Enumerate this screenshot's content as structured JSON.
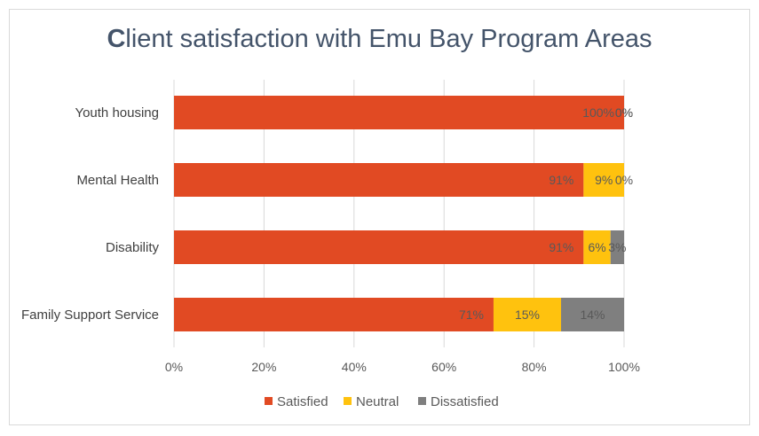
{
  "chart_data": {
    "type": "bar",
    "orientation": "horizontal",
    "stacked": "percent",
    "title_first_letter": "C",
    "title_rest": "lient satisfaction with Emu Bay Program Areas",
    "categories": [
      "Youth housing",
      "Mental Health",
      "Disability",
      "Family Support Service"
    ],
    "series": [
      {
        "name": "Satisfied",
        "color": "#e14a23",
        "values": [
          100,
          91,
          91,
          71
        ],
        "labels": [
          "100%",
          "91%",
          "91%",
          "71%"
        ]
      },
      {
        "name": "Neutral",
        "color": "#ffc20e",
        "values": [
          0,
          9,
          6,
          15
        ],
        "labels": [
          "0%",
          "9%",
          "6%",
          "15%"
        ]
      },
      {
        "name": "Dissatisfied",
        "color": "#7f7f7f",
        "values": [
          0,
          0,
          3,
          14
        ],
        "labels": [
          "0%",
          "0%",
          "3%",
          "14%"
        ]
      }
    ],
    "xticks": [
      "0%",
      "20%",
      "40%",
      "60%",
      "80%",
      "100%"
    ],
    "xlim": [
      0,
      100
    ],
    "grid": true,
    "legend": "bottom"
  }
}
